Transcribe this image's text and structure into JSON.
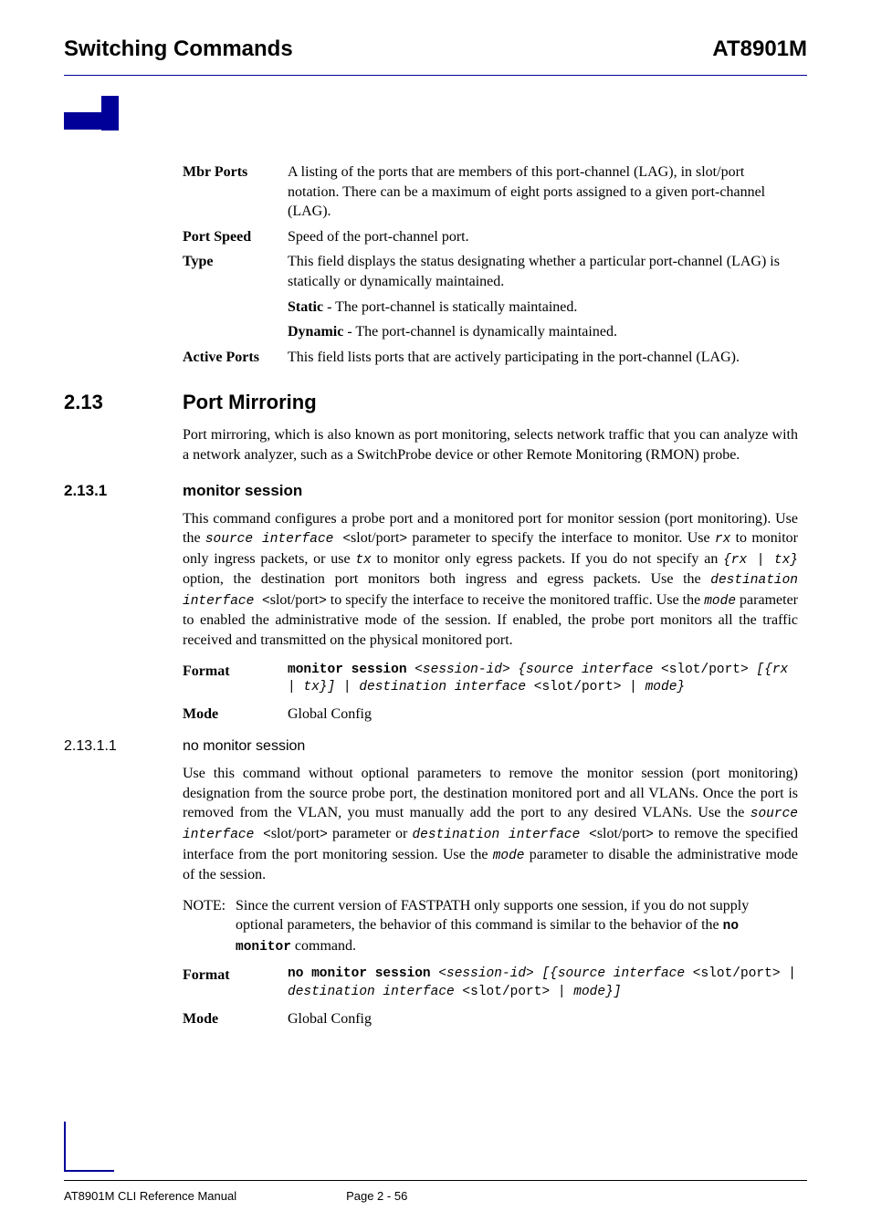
{
  "header": {
    "left": "Switching Commands",
    "right": "AT8901M"
  },
  "defs": {
    "mbrPorts": {
      "term": "Mbr Ports",
      "body": "A listing of the ports that are members of this port-channel (LAG), in slot/port notation. There can be a maximum of eight ports assigned to a given port-channel (LAG)."
    },
    "portSpeed": {
      "term": "Port Speed",
      "body": "Speed of the port-channel port."
    },
    "type": {
      "term": "Type",
      "body": "This field displays the status designating whether a particular port-channel (LAG) is statically or dynamically maintained."
    },
    "typeStaticLabel": "Static",
    "typeStaticText": " - The port-channel is statically maintained.",
    "typeDynamicLabel": "Dynamic",
    "typeDynamicText": " - The port-channel is dynamically maintained.",
    "activePorts": {
      "term": "Active Ports",
      "body": "This field lists ports that are actively participating in the port-channel (LAG)."
    }
  },
  "sec213": {
    "num": "2.13",
    "title": "Port Mirroring",
    "para": "Port mirroring, which is also known as port monitoring, selects network traffic that you can analyze with a network analyzer, such as a SwitchProbe device or other Remote Monitoring (RMON) probe."
  },
  "sec2131": {
    "num": "2.13.1",
    "title": "monitor session",
    "p1a": "This command configures a probe port and a monitored port for monitor session (port monitoring). Use the ",
    "p1b": "source interface <",
    "p1c": "slot/port",
    "p1d": ">",
    "p1e": " parameter to specify the interface to monitor. Use ",
    "p1f": "rx",
    "p1g": " to monitor only ingress packets, or use ",
    "p1h": "tx",
    "p1i": " to monitor only egress packets. If you do not specify an ",
    "p1j": "{rx | tx}",
    "p1k": " option, the destination port monitors both ingress and egress packets. Use the ",
    "p1l": "destination interface <",
    "p1m": "slot/port",
    "p1n": ">",
    "p1o": " to specify the interface to receive the monitored traffic. Use the ",
    "p1p": "mode",
    "p1q": " parameter to enabled the administrative mode of the session. If enabled, the probe port monitors all the traffic received and transmitted on the physical monitored port.",
    "formatLabel": "Format",
    "fmt_a": "monitor session ",
    "fmt_b": "<session-id> {source interface <",
    "fmt_c": "slot/port",
    "fmt_d": "> [{rx | tx}] | destination interface <",
    "fmt_e": "slot/port",
    "fmt_f": "> | mode}",
    "modeLabel": "Mode",
    "modeValue": "Global Config"
  },
  "sec21311": {
    "num": "2.13.1.1",
    "title": "no monitor session",
    "p1a": "Use this command without optional parameters to remove the monitor session (port monitoring) designation from the source probe port, the destination monitored port and all VLANs. Once the port is removed from the VLAN, you must manually add the port to any desired VLANs. Use the ",
    "p1b": "source interface <",
    "p1c": "slot/port",
    "p1d": ">",
    "p1e": " parameter or ",
    "p1f": "destination interface <",
    "p1g": "slot/port",
    "p1h": ">",
    "p1i": " to remove the specified interface from the port monitoring session. Use the ",
    "p1j": "mode",
    "p1k": " parameter to disable the administrative mode of the session.",
    "noteLabel": "NOTE:",
    "note_a": "Since the current version of FASTPATH only supports one session, if you do not supply optional parameters, the behavior of this command is similar to the behavior of the ",
    "note_b": "no monitor",
    "note_c": " command.",
    "formatLabel": "Format",
    "fmt_a": "no monitor session ",
    "fmt_b": "<session-id> [{source interface <",
    "fmt_c": "slot/port",
    "fmt_d": "> | destination interface <",
    "fmt_e": "slot/port",
    "fmt_f": "> | mode}]",
    "modeLabel": "Mode",
    "modeValue": "Global Config"
  },
  "footer": {
    "left": "AT8901M CLI Reference Manual",
    "right": "Page 2 - 56"
  },
  "colors": {
    "brand": "#000099",
    "text": "#000000",
    "bg": "#ffffff"
  }
}
